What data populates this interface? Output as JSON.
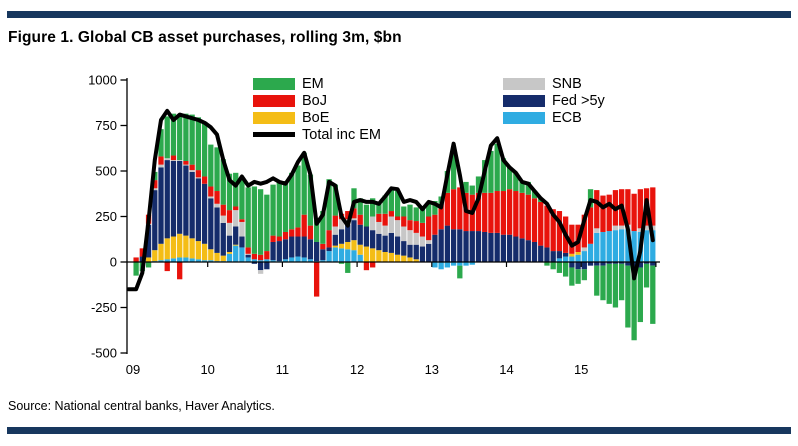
{
  "header": {
    "title": "Figure 1. Global CB asset purchases, rolling 3m, $bn"
  },
  "source": {
    "text": "Source: National central banks, Haver Analytics."
  },
  "style": {
    "rule_color": "#17375E",
    "background": "#ffffff"
  },
  "legend": {
    "position": "top-inside",
    "left": [
      {
        "label": "EM",
        "color": "#2CA94D",
        "swatch": "box"
      },
      {
        "label": "BoJ",
        "color": "#E8130C",
        "swatch": "box"
      },
      {
        "label": "BoE",
        "color": "#F4BD16",
        "swatch": "box"
      },
      {
        "label": "Total inc EM",
        "color": "#000000",
        "swatch": "line"
      }
    ],
    "right": [
      {
        "label": "SNB",
        "color": "#C7C7C7",
        "swatch": "box"
      },
      {
        "label": "Fed >5y",
        "color": "#152C6B",
        "swatch": "box"
      },
      {
        "label": "ECB",
        "color": "#2FACE2",
        "swatch": "box"
      }
    ]
  },
  "chart_data": {
    "type": "bar",
    "subtype": "stacked-monthly-bars-with-total-line",
    "title": "Figure 1. Global CB asset purchases, rolling 3m, $bn",
    "unit": "$bn",
    "x_start": "2009-01",
    "x_end": "2015-12",
    "frequency": "monthly",
    "n_months": 84,
    "x_tick_labels": [
      "09",
      "10",
      "11",
      "12",
      "13",
      "14",
      "15"
    ],
    "y_ticks": [
      1000,
      750,
      500,
      250,
      0,
      -250,
      -500
    ],
    "y_tick_labels": [
      "1000",
      "750",
      "500",
      "250",
      "0",
      "-250",
      "-500"
    ],
    "ylim": [
      -500,
      1000
    ],
    "grid": false,
    "stack_order_bottom_to_top": [
      "ECB",
      "BoE",
      "Fed >5y",
      "SNB",
      "BoJ",
      "EM"
    ],
    "series": [
      {
        "name": "ECB",
        "color": "#2FACE2",
        "values": [
          0,
          0,
          0,
          5,
          10,
          15,
          20,
          25,
          25,
          20,
          15,
          10,
          10,
          5,
          5,
          45,
          90,
          80,
          25,
          15,
          10,
          15,
          10,
          5,
          15,
          25,
          30,
          25,
          15,
          5,
          10,
          60,
          80,
          75,
          70,
          65,
          40,
          0,
          0,
          0,
          0,
          0,
          0,
          0,
          0,
          0,
          0,
          0,
          -30,
          -40,
          -30,
          -20,
          -20,
          -20,
          -15,
          0,
          0,
          0,
          0,
          0,
          0,
          0,
          0,
          0,
          0,
          0,
          0,
          0,
          20,
          30,
          30,
          40,
          60,
          100,
          160,
          165,
          170,
          175,
          180,
          180,
          170,
          165,
          175,
          175
        ]
      },
      {
        "name": "BoE",
        "color": "#F4BD16",
        "values": [
          0,
          0,
          25,
          60,
          90,
          115,
          120,
          130,
          120,
          110,
          100,
          90,
          60,
          45,
          30,
          10,
          5,
          0,
          0,
          0,
          0,
          0,
          0,
          0,
          0,
          0,
          0,
          0,
          0,
          0,
          0,
          0,
          10,
          25,
          40,
          55,
          55,
          85,
          75,
          65,
          55,
          50,
          40,
          35,
          25,
          15,
          0,
          0,
          0,
          0,
          0,
          0,
          0,
          0,
          0,
          0,
          0,
          0,
          0,
          0,
          0,
          0,
          0,
          0,
          0,
          0,
          0,
          0,
          0,
          0,
          15,
          15,
          0,
          0,
          0,
          0,
          0,
          0,
          0,
          0,
          0,
          0,
          0,
          0
        ]
      },
      {
        "name": "Fed >5y",
        "color": "#152C6B",
        "values": [
          0,
          30,
          180,
          330,
          420,
          430,
          415,
          400,
          385,
          365,
          345,
          330,
          280,
          250,
          180,
          90,
          100,
          60,
          15,
          -10,
          -45,
          -40,
          100,
          110,
          110,
          115,
          110,
          115,
          110,
          105,
          60,
          20,
          60,
          80,
          95,
          110,
          110,
          110,
          100,
          90,
          90,
          110,
          100,
          80,
          70,
          80,
          85,
          100,
          150,
          180,
          200,
          180,
          180,
          170,
          170,
          170,
          165,
          160,
          160,
          150,
          150,
          140,
          130,
          120,
          110,
          90,
          80,
          60,
          40,
          20,
          -30,
          -40,
          -40,
          -20,
          -20,
          -20,
          -10,
          -10,
          -10,
          -20,
          -30,
          -30,
          -10,
          -20
        ]
      },
      {
        "name": "SNB",
        "color": "#C7C7C7",
        "values": [
          0,
          0,
          5,
          10,
          15,
          10,
          5,
          5,
          5,
          10,
          5,
          0,
          10,
          20,
          40,
          70,
          90,
          80,
          5,
          0,
          -20,
          0,
          0,
          0,
          0,
          0,
          0,
          0,
          0,
          0,
          0,
          0,
          45,
          55,
          30,
          10,
          0,
          0,
          75,
          65,
          55,
          90,
          90,
          80,
          80,
          65,
          55,
          20,
          0,
          0,
          0,
          0,
          0,
          0,
          0,
          0,
          0,
          0,
          0,
          0,
          0,
          0,
          0,
          0,
          0,
          0,
          0,
          0,
          0,
          0,
          0,
          0,
          20,
          0,
          25,
          0,
          0,
          25,
          20,
          25,
          0,
          20,
          25,
          25
        ]
      },
      {
        "name": "BoJ",
        "color": "#E8130C",
        "values": [
          25,
          45,
          50,
          45,
          45,
          -50,
          25,
          -95,
          20,
          30,
          40,
          40,
          55,
          70,
          60,
          70,
          20,
          15,
          35,
          30,
          30,
          45,
          35,
          25,
          40,
          40,
          50,
          120,
          75,
          -190,
          30,
          95,
          60,
          30,
          45,
          55,
          55,
          -45,
          -30,
          45,
          65,
          30,
          20,
          55,
          55,
          65,
          75,
          130,
          110,
          140,
          180,
          220,
          230,
          210,
          200,
          210,
          215,
          220,
          230,
          240,
          250,
          250,
          250,
          250,
          240,
          240,
          230,
          230,
          220,
          200,
          160,
          150,
          180,
          200,
          210,
          200,
          200,
          195,
          200,
          195,
          205,
          215,
          205,
          210
        ]
      },
      {
        "name": "EM",
        "color": "#2CA94D",
        "values": [
          -75,
          -50,
          -30,
          45,
          150,
          230,
          230,
          250,
          260,
          275,
          290,
          300,
          230,
          240,
          250,
          200,
          185,
          230,
          330,
          370,
          360,
          310,
          280,
          300,
          280,
          310,
          340,
          340,
          280,
          120,
          180,
          280,
          170,
          -10,
          -60,
          110,
          90,
          120,
          100,
          65,
          100,
          125,
          140,
          55,
          85,
          75,
          75,
          75,
          75,
          40,
          120,
          210,
          -70,
          60,
          50,
          90,
          180,
          230,
          260,
          180,
          120,
          100,
          60,
          70,
          40,
          20,
          -20,
          -40,
          -60,
          -80,
          -100,
          -80,
          -60,
          100,
          -165,
          -190,
          -220,
          -240,
          -200,
          -340,
          -400,
          -300,
          -130,
          -320
        ]
      }
    ],
    "total_line": {
      "name": "Total inc EM",
      "color": "#000000",
      "values": [
        -150,
        -60,
        230,
        560,
        780,
        830,
        780,
        810,
        800,
        790,
        780,
        765,
        740,
        700,
        560,
        450,
        420,
        470,
        420,
        440,
        430,
        440,
        460,
        440,
        430,
        480,
        550,
        600,
        480,
        210,
        260,
        440,
        420,
        250,
        200,
        330,
        340,
        330,
        330,
        320,
        360,
        405,
        400,
        330,
        340,
        330,
        290,
        330,
        320,
        300,
        480,
        650,
        480,
        280,
        270,
        350,
        500,
        640,
        680,
        560,
        520,
        490,
        440,
        430,
        390,
        350,
        320,
        260,
        220,
        150,
        90,
        110,
        230,
        340,
        330,
        300,
        320,
        290,
        310,
        180,
        -90,
        60,
        340,
        120
      ]
    }
  }
}
